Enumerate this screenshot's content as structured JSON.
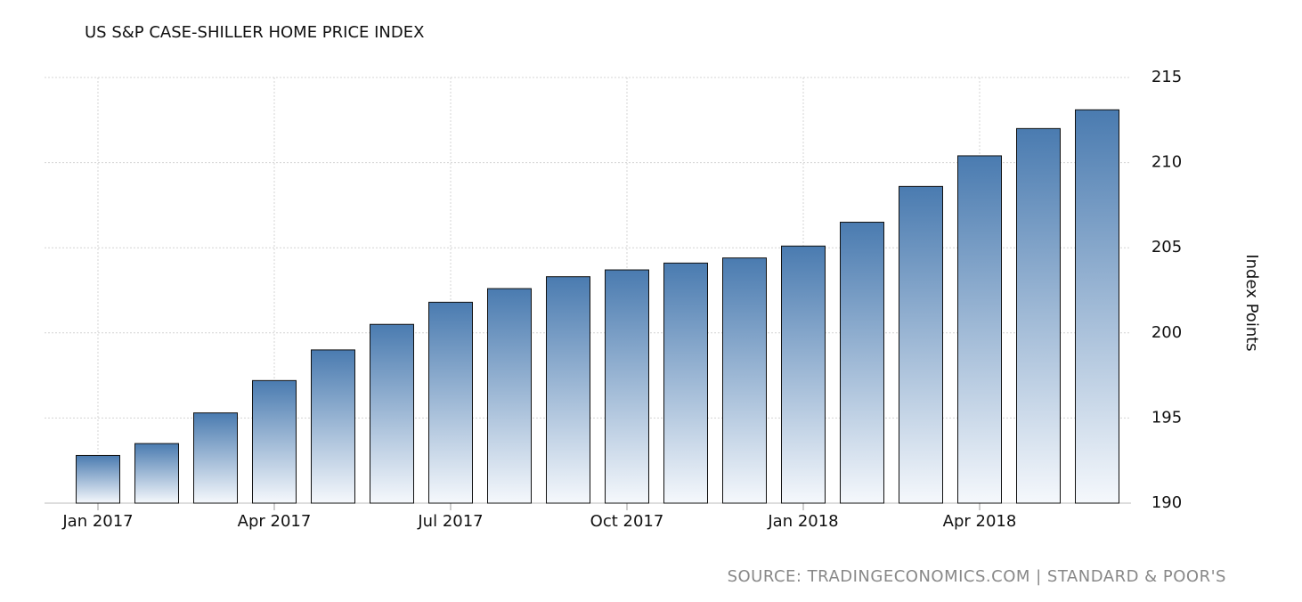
{
  "chart_data": {
    "type": "bar",
    "title": "US S&P CASE-SHILLER HOME PRICE INDEX",
    "y_label": "Index Points",
    "source": "SOURCE: TRADINGECONOMICS.COM | STANDARD & POOR'S",
    "categories": [
      "Jan 2017",
      null,
      null,
      "Apr 2017",
      null,
      null,
      "Jul 2017",
      null,
      null,
      "Oct 2017",
      null,
      null,
      "Jan 2018",
      null,
      null,
      "Apr 2018",
      null,
      null
    ],
    "values": [
      192.8,
      193.5,
      195.3,
      197.2,
      199.0,
      200.5,
      201.8,
      202.6,
      203.3,
      203.7,
      204.1,
      204.4,
      205.1,
      206.5,
      208.6,
      210.4,
      212.0,
      213.1
    ],
    "color": "#4a7bb0",
    "ylim": [
      190,
      215
    ],
    "yticks": [
      190,
      195,
      200,
      205,
      210,
      215
    ],
    "grid": true
  }
}
